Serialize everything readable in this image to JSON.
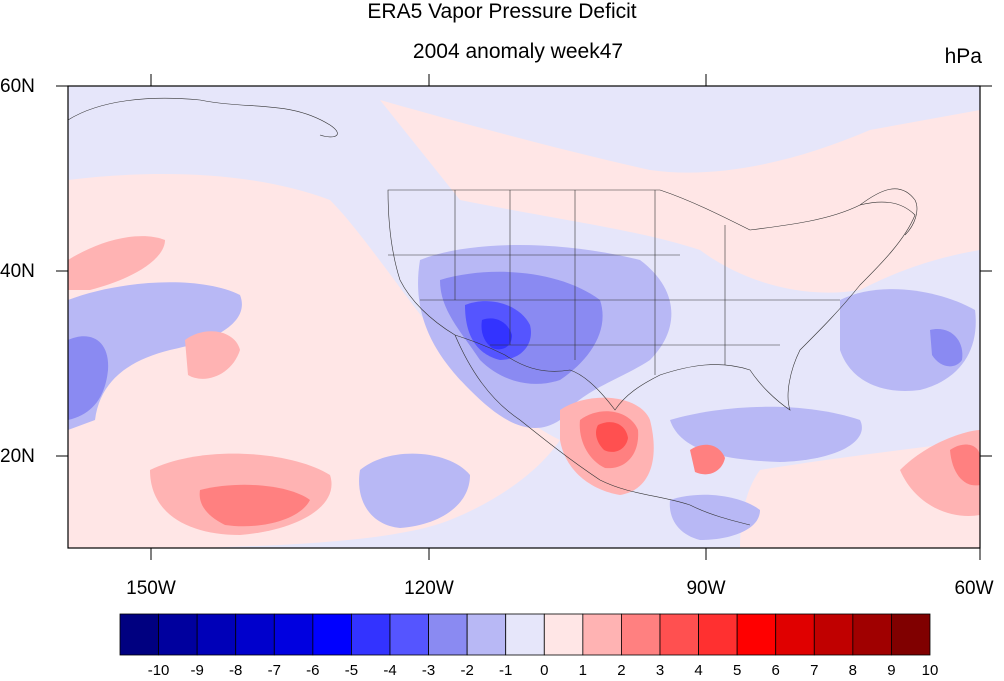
{
  "title": "ERA5 Vapor Pressure Deficit",
  "subtitle": "2004 anomaly week47",
  "units": "hPa",
  "axes": {
    "lat_labels": [
      "60N",
      "40N",
      "20N"
    ],
    "lon_labels": [
      "150W",
      "120W",
      "90W",
      "60W"
    ]
  },
  "colorbar": {
    "labels": [
      "-10",
      "-9",
      "-8",
      "-7",
      "-6",
      "-5",
      "-4",
      "-3",
      "-2",
      "-1",
      "0",
      "1",
      "2",
      "3",
      "4",
      "5",
      "6",
      "7",
      "8",
      "9",
      "10"
    ],
    "colors": [
      "#000080",
      "#00009e",
      "#0000b8",
      "#0000cc",
      "#0000e0",
      "#0000ff",
      "#3333ff",
      "#5555ff",
      "#8a8af2",
      "#b8b8f5",
      "#e6e6fa",
      "#ffe6e6",
      "#ffb3b3",
      "#ff8080",
      "#ff5050",
      "#ff3030",
      "#ff0000",
      "#e00000",
      "#c00000",
      "#a00000",
      "#800000"
    ]
  },
  "map_colors": {
    "neutral_neg": "#e6e6fa",
    "neutral_pos": "#ffe6e6",
    "light_blue": "#b8b8f5",
    "mid_blue": "#8a8af2",
    "strong_blue": "#5555ff",
    "deep_blue": "#3333ff",
    "light_red": "#ffb3b3",
    "mid_red": "#ff8080",
    "strong_red": "#ff5050"
  }
}
